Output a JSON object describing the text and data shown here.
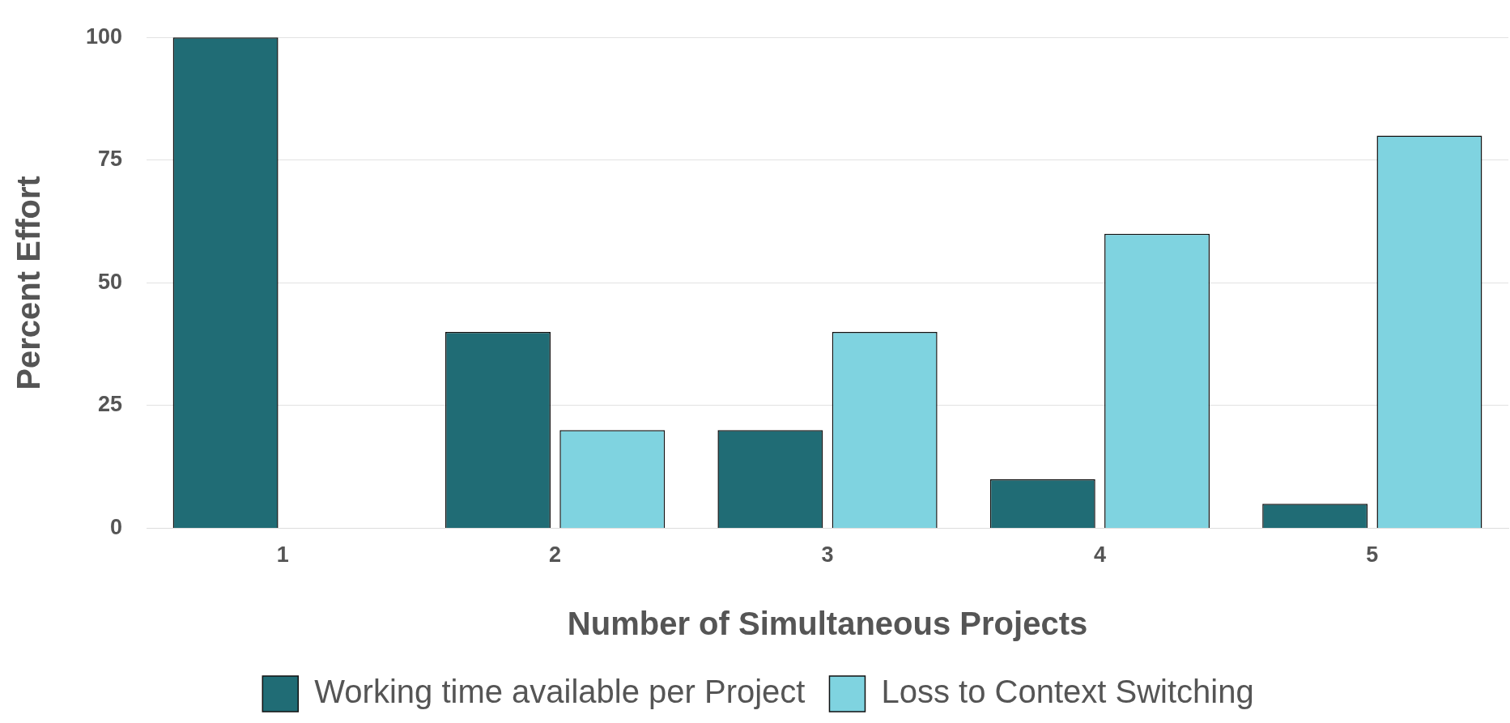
{
  "chart_data": {
    "type": "bar",
    "xlabel": "Number of Simultaneous Projects",
    "ylabel": "Percent Effort",
    "categories": [
      "1",
      "2",
      "3",
      "4",
      "5"
    ],
    "series": [
      {
        "name": "Working time available per Project",
        "color": "#206c75",
        "values": [
          100,
          40,
          20,
          10,
          5
        ]
      },
      {
        "name": "Loss to Context Switching",
        "color": "#7fd3e0",
        "values": [
          null,
          20,
          40,
          60,
          80
        ]
      }
    ],
    "ylim": [
      0,
      100
    ],
    "yticks": [
      0,
      25,
      50,
      75,
      100
    ],
    "grid": "y",
    "legend": "bottom"
  }
}
